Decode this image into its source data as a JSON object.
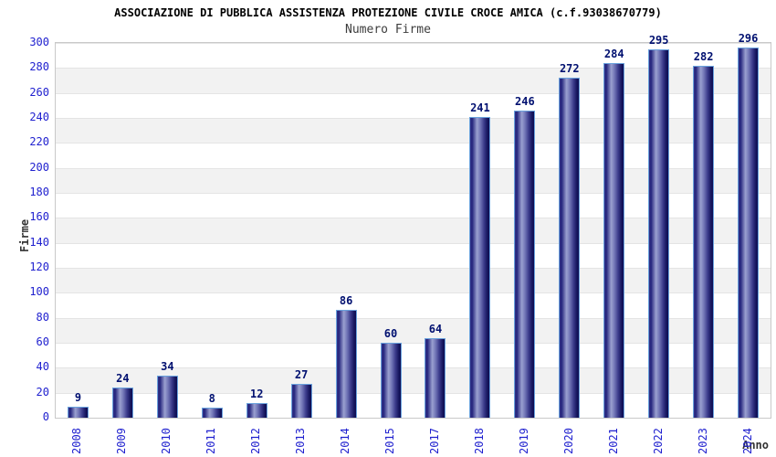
{
  "page": {
    "background": "#ffffff"
  },
  "chart_data": {
    "type": "bar",
    "title": "ASSOCIAZIONE DI PUBBLICA ASSISTENZA PROTEZIONE CIVILE CROCE AMICA (c.f.93038670779)",
    "subtitle": "Numero Firme",
    "xlabel": "Anno",
    "ylabel": "Firme",
    "categories": [
      "2008",
      "2009",
      "2010",
      "2011",
      "2012",
      "2013",
      "2014",
      "2015",
      "2017",
      "2018",
      "2019",
      "2020",
      "2021",
      "2022",
      "2023",
      "2024"
    ],
    "values": [
      9,
      24,
      34,
      8,
      12,
      27,
      86,
      60,
      64,
      241,
      246,
      272,
      284,
      295,
      282,
      296
    ],
    "ylim": [
      0,
      300
    ],
    "ytick_step": 20,
    "grid": true,
    "legend_position": "none",
    "layout_hints": {
      "bar_labels_shown": true,
      "x_tick_rotation_deg": 90,
      "alternating_bands": true
    },
    "colors": {
      "title": "#000000",
      "subtitle": "#3d3d3d",
      "axis_title": "#333333",
      "tick_label": "#2021cf",
      "value_label": "#001070",
      "band_alt": "#f2f2f2",
      "grid_line": "#e4e4e4",
      "plot_border": "#c9c9c9",
      "bar_border": "#6aa2dd",
      "bar_gradient": [
        "#34348a",
        "#24247c",
        "#9aa0d0",
        "#7478b8",
        "#3c3c8c",
        "#16165e",
        "#0d0d52"
      ]
    }
  }
}
